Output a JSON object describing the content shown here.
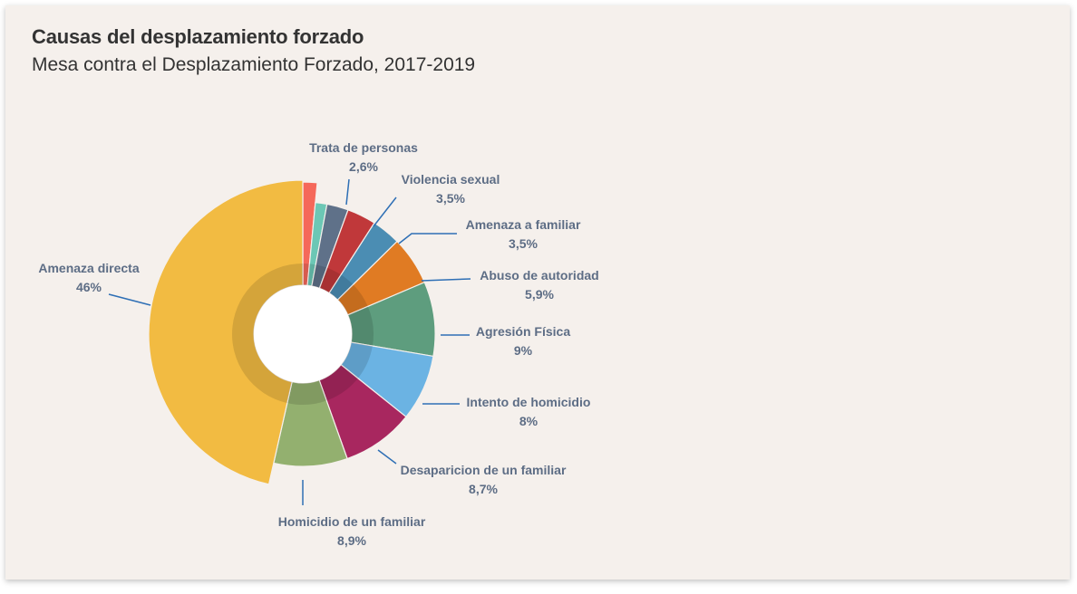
{
  "chart_data": {
    "type": "pie",
    "title": "Causas del desplazamiento forzado",
    "subtitle": "Mesa contra el Desplazamiento Forzado, 2017-2019",
    "unit": "%",
    "slices": [
      {
        "name": "",
        "value": 1.5,
        "value_label": "",
        "color": "#f5685a"
      },
      {
        "name": "",
        "value": 1.4,
        "value_label": "",
        "color": "#6cc7b5"
      },
      {
        "name": "Trata de personas",
        "value": 2.6,
        "value_label": "2,6%",
        "color": "#5f7189"
      },
      {
        "name": "Violencia sexual",
        "value": 3.5,
        "value_label": "3,5%",
        "color": "#c0383a"
      },
      {
        "name": "Amenaza a familiar",
        "value": 3.5,
        "value_label": "3,5%",
        "color": "#4b8db3"
      },
      {
        "name": "Abuso de autoridad",
        "value": 5.9,
        "value_label": "5,9%",
        "color": "#e07b23"
      },
      {
        "name": "Agresión Física",
        "value": 9,
        "value_label": "9%",
        "color": "#5e9d7e"
      },
      {
        "name": "Intento de homicidio",
        "value": 8,
        "value_label": "8%",
        "color": "#6bb3e3"
      },
      {
        "name": "Desaparicion de un familiar",
        "value": 8.7,
        "value_label": "8,7%",
        "color": "#a8275f"
      },
      {
        "name": "Homicidio de un familiar",
        "value": 8.9,
        "value_label": "8,9%",
        "color": "#93b06f"
      },
      {
        "name": "Amenaza directa",
        "value": 46,
        "value_label": "46%",
        "color": "#f2bb42"
      }
    ]
  }
}
